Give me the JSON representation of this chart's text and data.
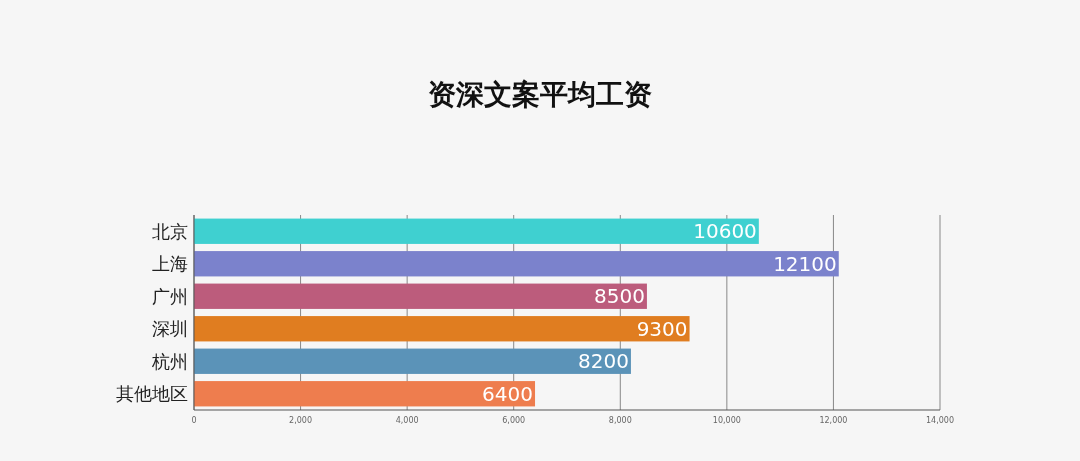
{
  "chart_data": {
    "type": "bar",
    "orientation": "horizontal",
    "title": "资深文案平均工资",
    "categories": [
      "北京",
      "上海",
      "广州",
      "深圳",
      "杭州",
      "其他地区"
    ],
    "values": [
      10600,
      12100,
      8500,
      9300,
      8200,
      6400
    ],
    "colors": [
      "#3fd0d0",
      "#7b82cc",
      "#bc5c7c",
      "#e07d20",
      "#5b93b8",
      "#ee7d4e"
    ],
    "xlim": [
      0,
      14000
    ],
    "xticks": [
      0,
      {
        "value": 2000,
        "label": "2,000"
      },
      {
        "value": 4000,
        "label": "4,000"
      },
      {
        "value": 6000,
        "label": "6,000"
      },
      {
        "value": 8000,
        "label": "8,000"
      },
      {
        "value": 10000,
        "label": "10,000"
      },
      {
        "value": 12000,
        "label": "12,000"
      },
      {
        "value": 14000,
        "label": "14,000"
      }
    ],
    "grid": "x",
    "data_labels": true
  }
}
